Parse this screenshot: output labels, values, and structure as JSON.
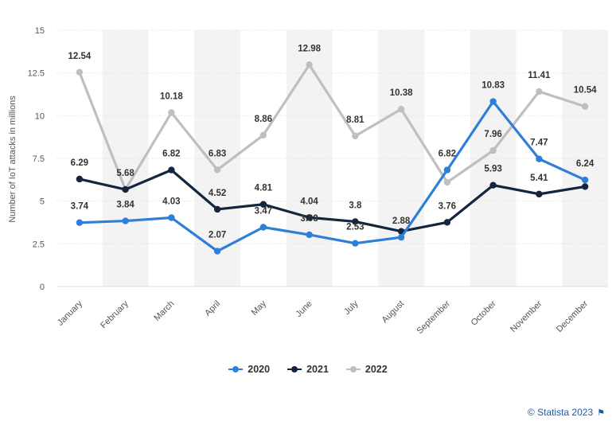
{
  "chart_data": {
    "type": "line",
    "ylabel": "Number of IoT attacks in millions",
    "xlabel": "",
    "ylim": [
      0,
      15
    ],
    "yticks": [
      0,
      2.5,
      5,
      7.5,
      10,
      12.5,
      15
    ],
    "ytick_labels": [
      "0",
      "2.5",
      "5",
      "7.5",
      "10",
      "12.5",
      "15"
    ],
    "categories": [
      "January",
      "February",
      "March",
      "April",
      "May",
      "June",
      "July",
      "August",
      "September",
      "October",
      "November",
      "December"
    ],
    "legend_position": "bottom",
    "grid": "alternating vertical bands",
    "series": [
      {
        "name": "2020",
        "color": "#2f7ed8",
        "values": [
          3.74,
          3.84,
          4.03,
          2.07,
          3.47,
          3.03,
          2.53,
          2.88,
          6.82,
          10.83,
          7.47,
          6.24
        ],
        "labels": [
          "3.74",
          "3.84",
          "4.03",
          "2.07",
          "3.47",
          "3.03",
          "2.53",
          "2.88",
          "6.82",
          "10.83",
          "7.47",
          "6.24"
        ]
      },
      {
        "name": "2021",
        "color": "#14253f",
        "values": [
          6.29,
          5.68,
          6.82,
          4.52,
          4.81,
          4.04,
          3.8,
          3.23,
          3.76,
          5.93,
          5.41,
          5.85
        ],
        "labels": [
          "6.29",
          "5.68",
          "6.82",
          "4.52",
          "4.81",
          "4.04",
          "3.8",
          "",
          "3.76",
          "5.93",
          "5.41",
          ""
        ]
      },
      {
        "name": "2022",
        "color": "#bfbfbf",
        "values": [
          12.54,
          5.68,
          10.18,
          6.83,
          8.86,
          12.98,
          8.81,
          10.38,
          6.1,
          7.96,
          11.41,
          10.54
        ],
        "labels": [
          "12.54",
          "",
          "10.18",
          "6.83",
          "8.86",
          "12.98",
          "8.81",
          "10.38",
          "",
          "7.96",
          "11.41",
          "10.54"
        ]
      }
    ]
  },
  "footer": {
    "credit": "© Statista 2023",
    "flag_icon": "flag-icon"
  }
}
